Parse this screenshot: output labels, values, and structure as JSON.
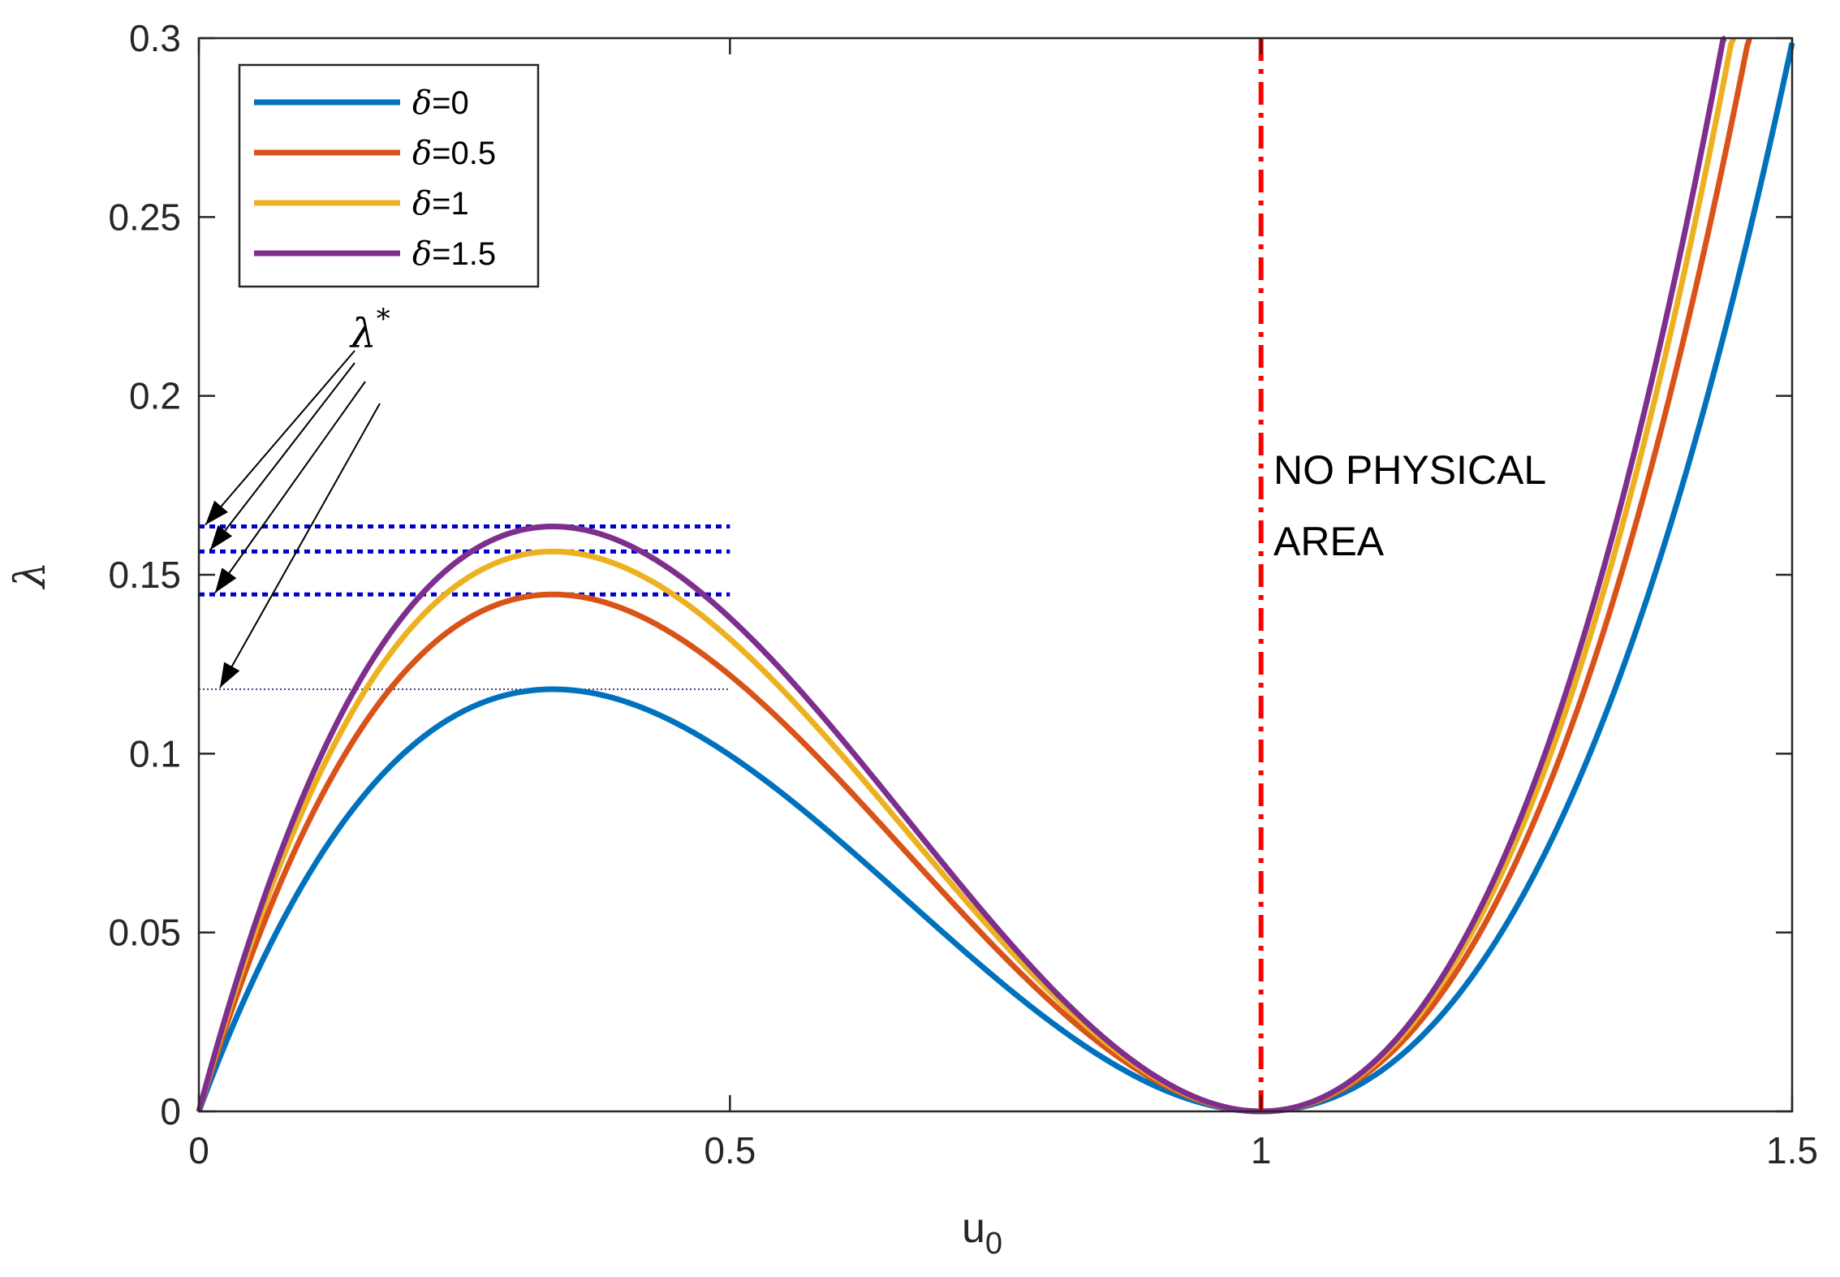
{
  "chart_data": {
    "type": "line",
    "xlabel_main": "u",
    "xlabel_sub": "0",
    "ylabel": "λ",
    "xlim": [
      0,
      1.5
    ],
    "ylim": [
      0,
      0.3
    ],
    "xticks": [
      "0",
      "0.5",
      "1",
      "1.5"
    ],
    "yticks": [
      "0",
      "0.05",
      "0.1",
      "0.15",
      "0.2",
      "0.25",
      "0.3"
    ],
    "legend_symbol": "δ",
    "legend_position": "top-left",
    "series": [
      {
        "name": "δ=0",
        "label_value": "=0",
        "delta": 0,
        "color": "#0072BD",
        "peak": 0.118
      },
      {
        "name": "δ=0.5",
        "label_value": "=0.5",
        "delta": 0.5,
        "color": "#D95319",
        "peak": 0.1445
      },
      {
        "name": "δ=1",
        "label_value": "=1",
        "delta": 1,
        "color": "#EDB120",
        "peak": 0.1565
      },
      {
        "name": "δ=1.5",
        "label_value": "=1.5",
        "delta": 1.5,
        "color": "#7E2F8E",
        "peak": 0.1635
      }
    ],
    "peak_lines": {
      "x_range": [
        0,
        0.5
      ],
      "levels": [
        0.1635,
        0.1565,
        0.1445,
        0.118
      ],
      "color": "#0000CC"
    },
    "boundary": {
      "x": 1,
      "color": "#FF0000",
      "style": "dash-dot"
    },
    "annotations": {
      "lambda_star": "λ",
      "lambda_star_sup": "*",
      "region_line1": "NO PHYSICAL",
      "region_line2": "AREA"
    }
  }
}
